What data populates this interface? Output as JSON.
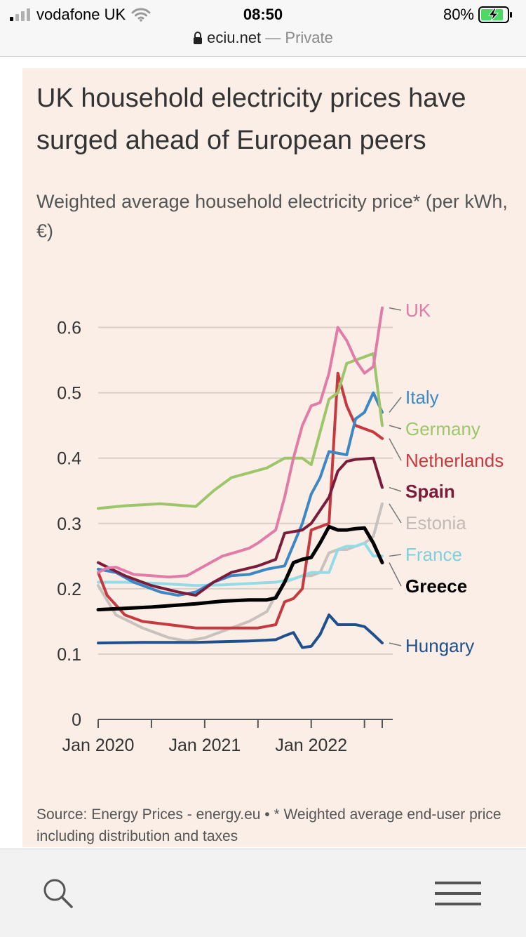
{
  "status_bar": {
    "carrier": "vodafone UK",
    "time": "08:50",
    "battery": "80%",
    "icons": [
      "signal-icon",
      "wifi-icon",
      "battery-charging-icon"
    ]
  },
  "browser": {
    "domain": "eciu.net",
    "mode": "— Private",
    "toolbar_icons": [
      "search-icon",
      "menu-icon"
    ]
  },
  "article": {
    "title": "UK household electricity prices have surged ahead of European peers",
    "subtitle": "Weighted average household electricity price* (per kWh, €)",
    "source": "Source: Energy Prices - energy.eu • * Weighted average end-user price including distribution and taxes"
  },
  "colors": {
    "background": "#fbeee6",
    "UK": "#e17ba8",
    "Italy": "#3d88c4",
    "Germany": "#9dc66a",
    "Netherlands": "#c6393f",
    "Spain": "#7a1c3a",
    "Estonia": "#c9c1bd",
    "France": "#93dbe6",
    "Greece": "#000000",
    "Hungary": "#1f4f8c"
  },
  "chart_data": {
    "type": "line",
    "y_ticks": [
      "0",
      "0.1",
      "0.2",
      "0.3",
      "0.4",
      "0.5",
      "0.6"
    ],
    "ylim": [
      0,
      0.65
    ],
    "x_ticks": [
      "Jan 2020",
      "Jan 2021",
      "Jan 2022"
    ],
    "x_tick_values": [
      "2020-01",
      "2021-01",
      "2022-01"
    ],
    "xlim": [
      "2020-01",
      "2022-09"
    ],
    "grid": true,
    "legend": "direct labels at right end of lines",
    "series": [
      {
        "name": "UK",
        "x": [
          "2020-01",
          "2020-02",
          "2020-03",
          "2020-05",
          "2020-07",
          "2020-09",
          "2020-11",
          "2021-01",
          "2021-03",
          "2021-05",
          "2021-06",
          "2021-07",
          "2021-09",
          "2021-10",
          "2021-11",
          "2021-12",
          "2022-01",
          "2022-02",
          "2022-03",
          "2022-04",
          "2022-05",
          "2022-06",
          "2022-07",
          "2022-08",
          "2022-09"
        ],
        "values": [
          0.225,
          0.232,
          0.233,
          0.222,
          0.22,
          0.218,
          0.22,
          0.235,
          0.25,
          0.258,
          0.262,
          0.27,
          0.29,
          0.34,
          0.4,
          0.45,
          0.48,
          0.485,
          0.53,
          0.6,
          0.58,
          0.55,
          0.53,
          0.54,
          0.63
        ]
      },
      {
        "name": "Italy",
        "x": [
          "2020-01",
          "2020-03",
          "2020-05",
          "2020-08",
          "2020-10",
          "2020-12",
          "2021-02",
          "2021-04",
          "2021-06",
          "2021-08",
          "2021-10",
          "2021-12",
          "2022-01",
          "2022-02",
          "2022-03",
          "2022-05",
          "2022-06",
          "2022-07",
          "2022-08",
          "2022-09"
        ],
        "values": [
          0.23,
          0.225,
          0.21,
          0.195,
          0.19,
          0.195,
          0.21,
          0.22,
          0.222,
          0.23,
          0.235,
          0.3,
          0.345,
          0.37,
          0.41,
          0.405,
          0.46,
          0.47,
          0.5,
          0.47
        ]
      },
      {
        "name": "Germany",
        "x": [
          "2020-01",
          "2020-04",
          "2020-08",
          "2020-12",
          "2021-02",
          "2021-04",
          "2021-08",
          "2021-10",
          "2021-12",
          "2022-01",
          "2022-03",
          "2022-04",
          "2022-05",
          "2022-06",
          "2022-08",
          "2022-09"
        ],
        "values": [
          0.323,
          0.327,
          0.33,
          0.326,
          0.35,
          0.37,
          0.385,
          0.4,
          0.4,
          0.39,
          0.49,
          0.5,
          0.545,
          0.55,
          0.56,
          0.45
        ]
      },
      {
        "name": "Netherlands",
        "x": [
          "2020-01",
          "2020-02",
          "2020-04",
          "2020-06",
          "2020-09",
          "2020-12",
          "2021-03",
          "2021-07",
          "2021-09",
          "2021-10",
          "2021-11",
          "2021-12",
          "2022-01",
          "2022-03",
          "2022-04",
          "2022-05",
          "2022-06",
          "2022-08",
          "2022-09"
        ],
        "values": [
          0.225,
          0.19,
          0.16,
          0.15,
          0.145,
          0.14,
          0.14,
          0.14,
          0.145,
          0.18,
          0.185,
          0.2,
          0.29,
          0.3,
          0.53,
          0.48,
          0.45,
          0.44,
          0.43
        ]
      },
      {
        "name": "Spain",
        "x": [
          "2020-01",
          "2020-04",
          "2020-07",
          "2020-10",
          "2020-12",
          "2021-02",
          "2021-04",
          "2021-07",
          "2021-09",
          "2021-10",
          "2021-12",
          "2022-01",
          "2022-03",
          "2022-04",
          "2022-05",
          "2022-06",
          "2022-08",
          "2022-09"
        ],
        "values": [
          0.24,
          0.22,
          0.205,
          0.195,
          0.19,
          0.21,
          0.225,
          0.235,
          0.245,
          0.285,
          0.29,
          0.3,
          0.34,
          0.38,
          0.395,
          0.398,
          0.4,
          0.355
        ]
      },
      {
        "name": "Estonia",
        "x": [
          "2020-01",
          "2020-03",
          "2020-06",
          "2020-09",
          "2020-11",
          "2021-01",
          "2021-04",
          "2021-06",
          "2021-08",
          "2021-09",
          "2021-10",
          "2021-12",
          "2022-01",
          "2022-02",
          "2022-03",
          "2022-04",
          "2022-05",
          "2022-06",
          "2022-07",
          "2022-08",
          "2022-09"
        ],
        "values": [
          0.205,
          0.16,
          0.14,
          0.125,
          0.12,
          0.125,
          0.14,
          0.15,
          0.165,
          0.19,
          0.21,
          0.22,
          0.22,
          0.225,
          0.255,
          0.26,
          0.26,
          0.265,
          0.27,
          0.28,
          0.33
        ]
      },
      {
        "name": "France",
        "x": [
          "2020-01",
          "2020-04",
          "2020-08",
          "2020-12",
          "2021-03",
          "2021-06",
          "2021-09",
          "2021-11",
          "2021-12",
          "2022-01",
          "2022-03",
          "2022-04",
          "2022-05",
          "2022-06",
          "2022-07",
          "2022-08",
          "2022-09"
        ],
        "values": [
          0.21,
          0.21,
          0.208,
          0.205,
          0.206,
          0.208,
          0.21,
          0.215,
          0.22,
          0.225,
          0.225,
          0.26,
          0.265,
          0.265,
          0.27,
          0.25,
          0.25
        ]
      },
      {
        "name": "Greece",
        "x": [
          "2020-01",
          "2020-04",
          "2020-07",
          "2020-10",
          "2020-12",
          "2021-03",
          "2021-06",
          "2021-08",
          "2021-09",
          "2021-10",
          "2021-11",
          "2021-12",
          "2022-01",
          "2022-02",
          "2022-03",
          "2022-04",
          "2022-05",
          "2022-06",
          "2022-07",
          "2022-08",
          "2022-09"
        ],
        "values": [
          0.168,
          0.17,
          0.172,
          0.175,
          0.177,
          0.181,
          0.183,
          0.183,
          0.186,
          0.21,
          0.24,
          0.245,
          0.248,
          0.27,
          0.295,
          0.29,
          0.29,
          0.292,
          0.293,
          0.27,
          0.24
        ]
      },
      {
        "name": "Hungary",
        "x": [
          "2020-01",
          "2020-06",
          "2020-12",
          "2021-06",
          "2021-09",
          "2021-10",
          "2021-11",
          "2021-12",
          "2022-01",
          "2022-02",
          "2022-03",
          "2022-04",
          "2022-05",
          "2022-06",
          "2022-07",
          "2022-08",
          "2022-09"
        ],
        "values": [
          0.117,
          0.118,
          0.118,
          0.12,
          0.122,
          0.128,
          0.133,
          0.11,
          0.112,
          0.13,
          0.16,
          0.145,
          0.145,
          0.145,
          0.142,
          0.13,
          0.117
        ]
      }
    ]
  }
}
